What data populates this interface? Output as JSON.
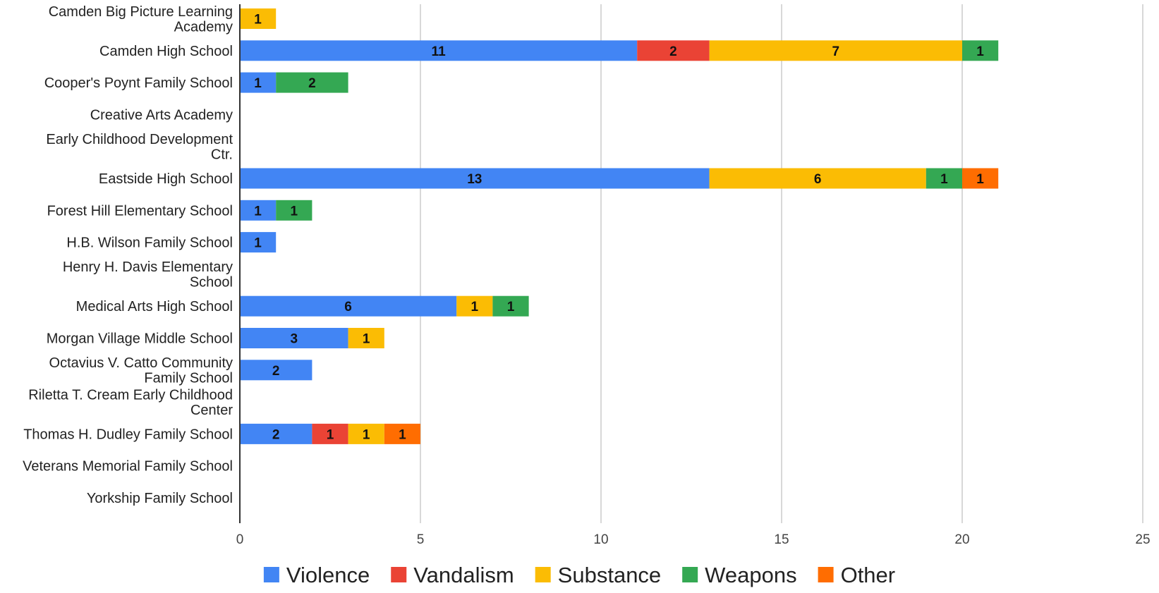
{
  "chart_data": {
    "type": "bar",
    "orientation": "horizontal",
    "stacked": true,
    "categories": [
      "Camden Big Picture Learning Academy",
      "Camden High School",
      "Cooper's Poynt Family School",
      "Creative Arts Academy",
      "Early Childhood Development Ctr.",
      "Eastside High School",
      "Forest Hill Elementary School",
      "H.B. Wilson Family School",
      "Henry H. Davis Elementary School",
      "Medical Arts High School",
      "Morgan Village Middle School",
      "Octavius V. Catto Community Family School",
      "Riletta T. Cream Early Childhood Center",
      "Thomas H. Dudley Family School",
      "Veterans Memorial Family School",
      "Yorkship Family School"
    ],
    "category_lines": [
      [
        "Camden Big Picture Learning",
        "Academy"
      ],
      [
        "Camden High School"
      ],
      [
        "Cooper's Poynt Family School"
      ],
      [
        "Creative Arts Academy"
      ],
      [
        "Early Childhood Development",
        "Ctr."
      ],
      [
        "Eastside High School"
      ],
      [
        "Forest Hill Elementary School"
      ],
      [
        "H.B. Wilson Family School"
      ],
      [
        "Henry H. Davis Elementary",
        "School"
      ],
      [
        "Medical Arts High School"
      ],
      [
        "Morgan Village Middle School"
      ],
      [
        "Octavius V. Catto Community",
        "Family School"
      ],
      [
        "Riletta T. Cream Early Childhood",
        "Center"
      ],
      [
        "Thomas H. Dudley Family School"
      ],
      [
        "Veterans Memorial Family School"
      ],
      [
        "Yorkship Family School"
      ]
    ],
    "series": [
      {
        "name": "Violence",
        "color": "#4285f4",
        "values": [
          0,
          11,
          1,
          0,
          0,
          13,
          1,
          1,
          0,
          6,
          3,
          2,
          0,
          2,
          0,
          0
        ]
      },
      {
        "name": "Vandalism",
        "color": "#ea4335",
        "values": [
          0,
          2,
          0,
          0,
          0,
          0,
          0,
          0,
          0,
          0,
          0,
          0,
          0,
          1,
          0,
          0
        ]
      },
      {
        "name": "Substance",
        "color": "#fbbc04",
        "values": [
          1,
          7,
          0,
          0,
          0,
          6,
          0,
          0,
          0,
          1,
          1,
          0,
          0,
          1,
          0,
          0
        ]
      },
      {
        "name": "Weapons",
        "color": "#34a853",
        "values": [
          0,
          1,
          2,
          0,
          0,
          1,
          1,
          0,
          0,
          1,
          0,
          0,
          0,
          0,
          0,
          0
        ]
      },
      {
        "name": "Other",
        "color": "#ff6d01",
        "values": [
          0,
          0,
          0,
          0,
          0,
          1,
          0,
          0,
          0,
          0,
          0,
          0,
          0,
          1,
          0,
          0
        ]
      }
    ],
    "xlim": [
      0,
      25
    ],
    "xticks": [
      0,
      5,
      10,
      15,
      20,
      25
    ],
    "grid": true,
    "legend_position": "bottom",
    "title": "",
    "xlabel": "",
    "ylabel": ""
  }
}
